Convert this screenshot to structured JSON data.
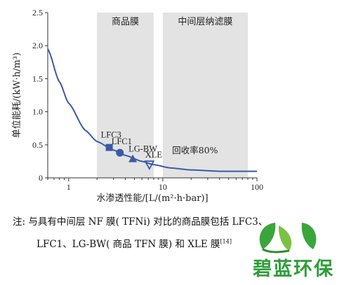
{
  "chart_data": {
    "type": "line",
    "xscale": "log",
    "xlim": [
      0.6,
      100
    ],
    "ylim": [
      0,
      2.5
    ],
    "xticks": [
      "1",
      "10",
      "100"
    ],
    "yticks": [
      "0",
      "0.5",
      "1.0",
      "1.5",
      "2.0",
      "2.5"
    ],
    "xlabel": "水渗透性能/[L/(m²·h·bar)]",
    "ylabel": "单位能耗/(kW·h/m³)",
    "regions": [
      {
        "label": "商品膜",
        "x_range": [
          2,
          8
        ]
      },
      {
        "label": "中间层纳滤膜",
        "x_range": [
          10,
          80
        ]
      }
    ],
    "curve": {
      "x": [
        0.6,
        0.8,
        1,
        1.5,
        2,
        3,
        4,
        6,
        8,
        12,
        20,
        40,
        100
      ],
      "y": [
        1.95,
        1.45,
        1.13,
        0.72,
        0.55,
        0.42,
        0.34,
        0.25,
        0.2,
        0.15,
        0.12,
        0.1,
        0.1
      ]
    },
    "points": [
      {
        "label": "LFC3",
        "x": 2.7,
        "y": 0.46,
        "marker": "square"
      },
      {
        "label": "LFC1",
        "x": 3.5,
        "y": 0.38,
        "marker": "circle"
      },
      {
        "label": "LG-BW",
        "x": 4.8,
        "y": 0.29,
        "marker": "triangle"
      },
      {
        "label": "XLE",
        "x": 7.2,
        "y": 0.2,
        "marker": "triangle-down"
      }
    ],
    "annotation": "回收率80%",
    "colors": {
      "curve": "#3a5aa8",
      "region": "#e3e3e3"
    }
  },
  "caption": {
    "line1": "注: 与具有中间层 NF 膜( TFNi) 对比的商品膜包括 LFC3、",
    "line2": "LFC1、LG-BW( 商品 TFN 膜) 和 XLE 膜",
    "ref": "[14]"
  },
  "watermark": {
    "text": "碧蓝环保",
    "icon": "leaf-logo-icon"
  }
}
